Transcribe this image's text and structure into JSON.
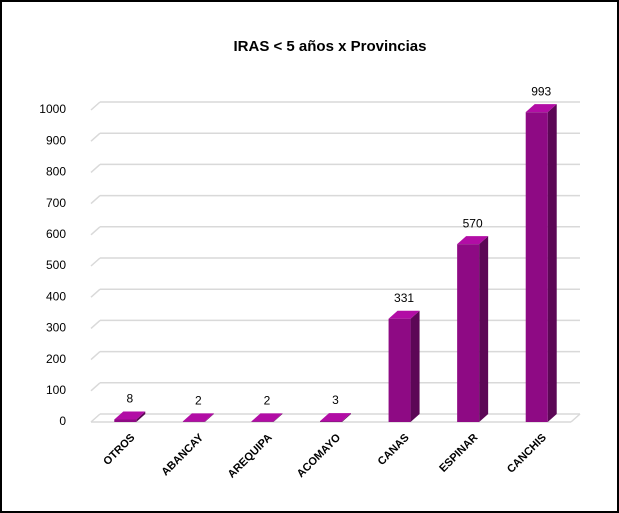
{
  "chart_data": {
    "type": "bar",
    "title": "IRAS < 5 años x Provincias",
    "categories": [
      "OTROS",
      "ABANCAY",
      "AREQUIPA",
      "ACOMAYO",
      "CANAS",
      "ESPINAR",
      "CANCHIS"
    ],
    "values": [
      8,
      2,
      2,
      3,
      331,
      570,
      993
    ],
    "color": "#8e0a84",
    "ylim": [
      0,
      1000
    ],
    "yticks": [
      0,
      100,
      200,
      300,
      400,
      500,
      600,
      700,
      800,
      900,
      1000
    ],
    "grid": true
  }
}
